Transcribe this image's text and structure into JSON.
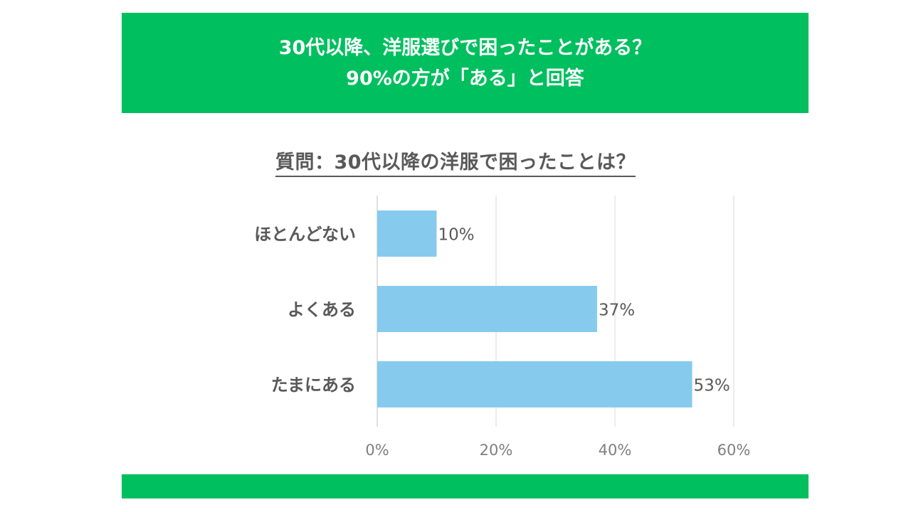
{
  "header": {
    "line1": "30代以降、洋服選びで困ったことがある？",
    "line2": "90%の方が「ある」と回答",
    "bg_color": "#00bf5f"
  },
  "chart_data": {
    "type": "bar",
    "orientation": "horizontal",
    "title": "質問：30代以降の洋服で困ったことは？",
    "categories": [
      "ほとんどない",
      "よくある",
      "たまにある"
    ],
    "values": [
      10,
      37,
      53
    ],
    "value_labels": [
      "10%",
      "37%",
      "53%"
    ],
    "xlim": [
      0,
      60
    ],
    "xticks": [
      0,
      20,
      40,
      60
    ],
    "xtick_labels": [
      "0%",
      "20%",
      "40%",
      "60%"
    ],
    "grid": true,
    "bar_color": "#86cbee"
  }
}
